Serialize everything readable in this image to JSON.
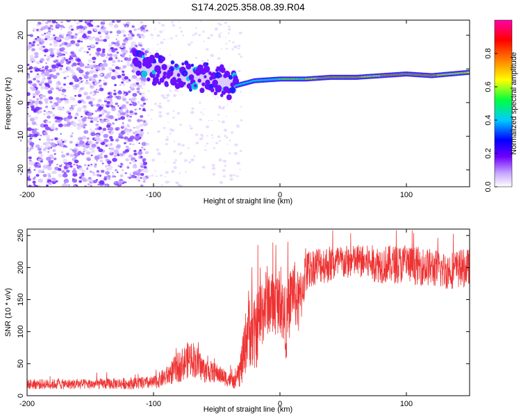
{
  "title": "S174.2025.358.08.39.R04",
  "chart_data": [
    {
      "type": "heatmap",
      "name": "spectrogram",
      "xlabel": "Height of straight line (km)",
      "ylabel": "Frequency (Hz)",
      "xlim": [
        -200,
        150
      ],
      "ylim": [
        -25,
        24.5
      ],
      "xticks": [
        "-200",
        "-100",
        "0",
        "100"
      ],
      "xtick_values": [
        -200,
        -100,
        0,
        100
      ],
      "yticks": [
        "20",
        "10",
        "0",
        "-10",
        "-20"
      ],
      "ytick_values": [
        20,
        10,
        0,
        -10,
        -20
      ],
      "ridge": {
        "description_points_x": [
          -110,
          -90,
          -70,
          -50,
          -35,
          -20,
          0,
          20,
          40,
          60,
          80,
          100,
          120,
          150
        ],
        "frequency_hz": [
          11,
          9,
          8,
          7,
          5,
          6.5,
          7,
          7,
          7.5,
          7.5,
          8,
          8.5,
          8,
          9
        ]
      },
      "colorbar": {
        "label": "Normalized spectral amplitude",
        "range": [
          0,
          1
        ],
        "ticks": [
          "0.0",
          "0.2",
          "0.4",
          "0.6",
          "0.8"
        ],
        "tick_values": [
          0,
          0.2,
          0.4,
          0.6,
          0.8
        ]
      }
    },
    {
      "type": "line",
      "name": "snr",
      "xlabel": "Height of straight line (km)",
      "ylabel": "SNR (10 * v/v)",
      "xlim": [
        -200,
        150
      ],
      "ylim": [
        0,
        260
      ],
      "xticks": [
        "-200",
        "-100",
        "0",
        "100"
      ],
      "xtick_values": [
        -200,
        -100,
        0,
        100
      ],
      "yticks": [
        "0",
        "50",
        "100",
        "150",
        "200",
        "250"
      ],
      "ytick_values": [
        0,
        50,
        100,
        150,
        200,
        250
      ],
      "series": [
        {
          "name": "SNR",
          "color": "#ee3333",
          "x": [
            -200,
            -150,
            -100,
            -90,
            -80,
            -70,
            -60,
            -50,
            -40,
            -35,
            -30,
            -25,
            -20,
            -15,
            -10,
            -5,
            0,
            5,
            10,
            15,
            20,
            25,
            30,
            40,
            60,
            80,
            100,
            120,
            130,
            150
          ],
          "y": [
            18,
            18,
            20,
            30,
            45,
            60,
            40,
            35,
            25,
            20,
            50,
            110,
            90,
            130,
            150,
            140,
            150,
            110,
            170,
            140,
            190,
            200,
            205,
            205,
            210,
            205,
            205,
            200,
            195,
            200
          ],
          "amplitude": [
            8,
            8,
            10,
            15,
            25,
            30,
            20,
            15,
            12,
            10,
            35,
            60,
            60,
            60,
            55,
            50,
            50,
            55,
            50,
            50,
            35,
            30,
            30,
            30,
            25,
            30,
            30,
            30,
            30,
            30
          ]
        }
      ]
    }
  ]
}
